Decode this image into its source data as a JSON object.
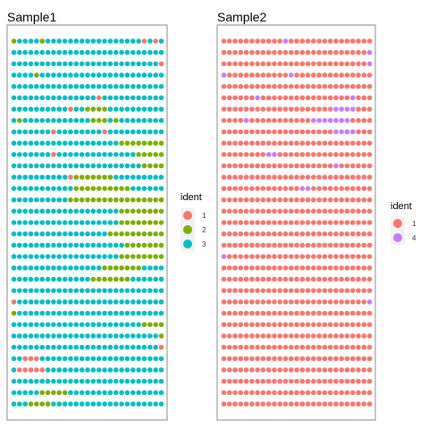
{
  "chart_data": [
    {
      "type": "scatter",
      "title": "Sample1",
      "legend": {
        "title": "ident",
        "position": "right",
        "entries": [
          {
            "label": "1",
            "color": "#F8766D"
          },
          {
            "label": "2",
            "color": "#7CAE00"
          },
          {
            "label": "3",
            "color": "#00BFC4"
          }
        ]
      },
      "grid": false,
      "axes_visible": false,
      "colors": {
        "1": "#F8766D",
        "2": "#7CAE00",
        "3": "#00BFC4"
      },
      "rows": [
        "233332333333333333333331313",
        "333333333333333333333333333",
        "333333333333333333333333331",
        "333323333333333333333333333",
        "333333333333333333333333333",
        "333333333333333133333333333",
        "333333333313322223333333333",
        "323333333333332223233333333",
        "333333313333333313333333333",
        "333333333333333333322222222",
        "333333313333333333333322222",
        "333333333333333333333332222",
        "333333333312222222333333333",
        "333333333332222222222333333",
        "333333333322222222222222222",
        "333333333333333333322222222",
        "333333333333333333322222222",
        "333333333333333332222222222",
        "333333333333333333332222222",
        "333333333333333333322222222",
        "333333333333333322222223333",
        "333333333333332222222333333",
        "333333333333333333333333333",
        "133333333333333333333333333",
        "233333333333333333333333333",
        "333333333333333333333332222",
        "333333333333333333333333332",
        "333333333333333333333333331",
        "331113333333333333333333333",
        "311111333333333333333333333",
        "333333333333333333333333333",
        "333332222233333333333333333",
        "333222233333333333333333333"
      ]
    },
    {
      "type": "scatter",
      "title": "Sample2",
      "legend": {
        "title": "ident",
        "position": "right",
        "entries": [
          {
            "label": "1",
            "color": "#F8766D"
          },
          {
            "label": "4",
            "color": "#C77CFF"
          }
        ]
      },
      "grid": false,
      "axes_visible": false,
      "colors": {
        "1": "#F8766D",
        "4": "#C77CFF"
      },
      "rows": [
        "111111111114111111111111111",
        "111111111111111111111111114",
        "111111111111111111111111114",
        "411111111111411111111111111",
        "111111111111111111111111111",
        "111111411111111111111114111",
        "111111111111111111114444111",
        "111141111111111144444441111",
        "111111111111111111114444111",
        "111111111111111111111111111",
        "111111114411111111111111111",
        "111111111111111111114111111",
        "111111111111111111111111111",
        "111111111111114411111111111",
        "111111111111111111111111111",
        "111111111111111111111111111",
        "111111111111111111111111111",
        "111111111111111111111111111",
        "111111111111111111111111111",
        "411111111111111111111111111",
        "111111111111111111111111111",
        "111111111111111111111111111",
        "111111111111111111111111111",
        "111111111111111111111111114",
        "111111111111111111111111111",
        "111111111111111111111111111",
        "111111111111111111111111111",
        "111111111111111111111111111",
        "111111111111111111111111111",
        "111111111111111111111111111",
        "111111111111111111111111111",
        "111111111111111111111111111",
        "111111111111111111111111111"
      ]
    }
  ]
}
